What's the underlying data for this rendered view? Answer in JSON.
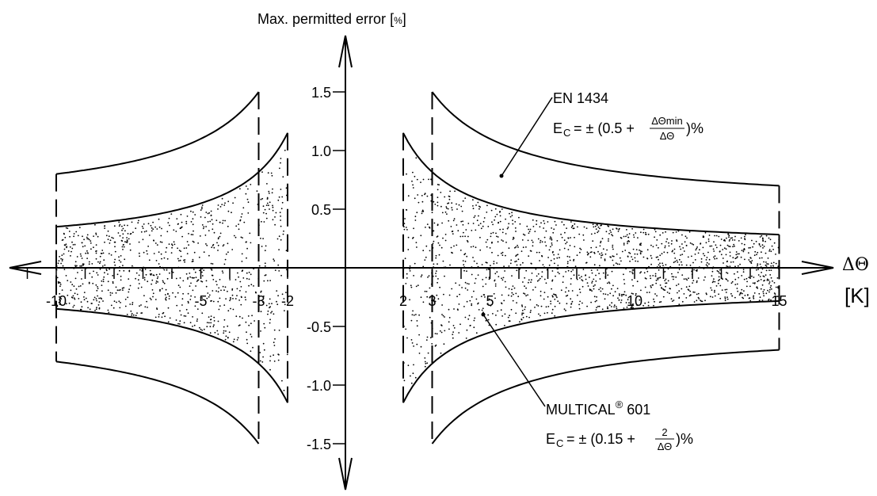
{
  "chart_data": {
    "type": "line",
    "ylabel": "Max. permitted error",
    "ylabel_unit": "%",
    "xlabel_symbol": "ΔΘ",
    "xlabel_unit": "[K]",
    "xlim": [
      -11.7,
      16.5
    ],
    "ylim": [
      -1.8,
      1.8
    ],
    "x_tick_labels": [
      {
        "value": -10,
        "label": "-10"
      },
      {
        "value": -5,
        "label": "-5"
      },
      {
        "value": -3,
        "label": "-3"
      },
      {
        "value": -2,
        "label": "-2"
      },
      {
        "value": 2,
        "label": "2"
      },
      {
        "value": 3,
        "label": "3"
      },
      {
        "value": 5,
        "label": "5"
      },
      {
        "value": 10,
        "label": "10"
      },
      {
        "value": 15,
        "label": "15"
      }
    ],
    "y_tick_labels": [
      {
        "value": 1.5,
        "label": "1.5"
      },
      {
        "value": 1.0,
        "label": "1.0"
      },
      {
        "value": 0.5,
        "label": "0.5"
      },
      {
        "value": -0.5,
        "label": "-0.5"
      },
      {
        "value": -1.0,
        "label": "-1.0"
      },
      {
        "value": -1.5,
        "label": "-1.5"
      }
    ],
    "series": [
      {
        "name": "EN 1434",
        "formula_a": 0.5,
        "formula_b": 3,
        "x_ranges": [
          [
            -10,
            -3
          ],
          [
            3,
            15
          ]
        ],
        "values_at": [
          {
            "x": -10,
            "y": 0.8
          },
          {
            "x": -3,
            "y": 1.5
          },
          {
            "x": 3,
            "y": 1.5
          },
          {
            "x": 15,
            "y": 0.7
          }
        ]
      },
      {
        "name": "MULTICAL® 601",
        "formula_a": 0.15,
        "formula_b": 2,
        "x_ranges": [
          [
            -10,
            -2
          ],
          [
            2,
            15
          ]
        ],
        "values_at": [
          {
            "x": -10,
            "y": 0.35
          },
          {
            "x": -2,
            "y": 1.15
          },
          {
            "x": 2,
            "y": 1.15
          },
          {
            "x": 15,
            "y": 0.28
          }
        ]
      }
    ],
    "annotations": {
      "en": {
        "title": "EN 1434",
        "lead": "E",
        "sub": "C",
        "eq": "= ± (0.5 +",
        "num": "ΔΘmin",
        "den": "ΔΘ",
        "tail": ")%"
      },
      "mc": {
        "title": "MULTICAL",
        "sup": "®",
        "title_rest": " 601",
        "lead": "E",
        "sub": "C",
        "eq": "= ± (0.15 +",
        "num": "2",
        "den": "ΔΘ",
        "tail": ")%"
      }
    },
    "grid": false,
    "legend": "none"
  }
}
